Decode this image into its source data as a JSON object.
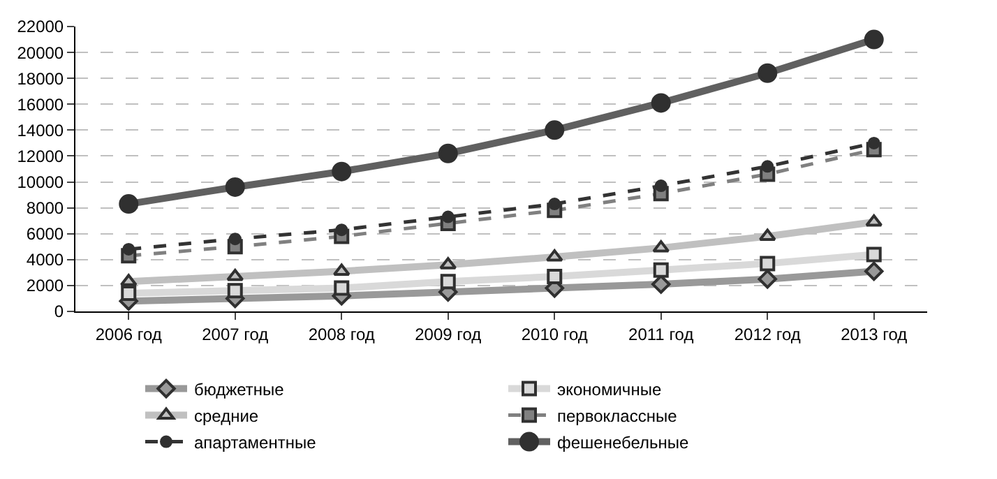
{
  "chart_data": {
    "type": "line",
    "categories": [
      "2006 год",
      "2007 год",
      "2008 год",
      "2009 год",
      "2010 год",
      "2011 год",
      "2012 год",
      "2013 год"
    ],
    "series": [
      {
        "name": "бюджетные",
        "color": "#999999",
        "marker": "diamond",
        "line_style": "solid",
        "values": [
          800,
          1000,
          1200,
          1500,
          1800,
          2100,
          2500,
          3100
        ]
      },
      {
        "name": "экономичные",
        "color": "#d9d9d9",
        "marker": "square",
        "line_style": "solid",
        "values": [
          1400,
          1600,
          1800,
          2300,
          2700,
          3200,
          3700,
          4400
        ]
      },
      {
        "name": "средние",
        "color": "#c0c0c0",
        "marker": "triangle",
        "line_style": "solid",
        "values": [
          2300,
          2700,
          3100,
          3600,
          4200,
          4900,
          5800,
          6900
        ]
      },
      {
        "name": "первоклассные",
        "color": "#808080",
        "marker": "square",
        "line_style": "dashed",
        "values": [
          4300,
          5000,
          5800,
          6800,
          7800,
          9100,
          10600,
          12500
        ]
      },
      {
        "name": "апартаментные",
        "color": "#333333",
        "marker": "circle",
        "line_style": "dashed",
        "values": [
          4800,
          5600,
          6300,
          7300,
          8300,
          9700,
          11200,
          13000
        ]
      },
      {
        "name": "фешенебельные",
        "color": "#606060",
        "marker": "circle",
        "line_style": "solid",
        "values": [
          8300,
          9600,
          10800,
          12200,
          14000,
          16100,
          18400,
          21000
        ]
      }
    ],
    "ylim": [
      0,
      22000
    ],
    "yticks": [
      0,
      2000,
      4000,
      6000,
      8000,
      10000,
      12000,
      14000,
      16000,
      18000,
      20000,
      22000
    ],
    "grid": "y",
    "legend": "bottom"
  }
}
